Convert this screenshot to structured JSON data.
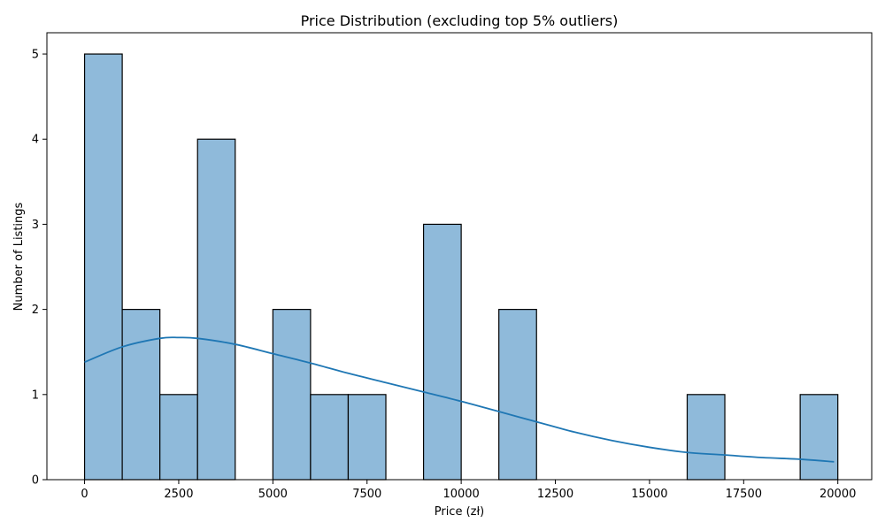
{
  "chart_data": {
    "type": "bar",
    "title": "Price Distribution (excluding top 5% outliers)",
    "xlabel": "Price (zł)",
    "ylabel": "Number of Listings",
    "xlim": [
      -1000,
      20900
    ],
    "ylim": [
      0,
      5.25
    ],
    "x_ticks": [
      0,
      2500,
      5000,
      7500,
      10000,
      12500,
      15000,
      17500,
      20000
    ],
    "y_ticks": [
      0,
      1,
      2,
      3,
      4,
      5
    ],
    "grid": false,
    "bin_edges": [
      0,
      1000,
      2000,
      3000,
      4000,
      5000,
      6000,
      7000,
      8000,
      9000,
      10000,
      11000,
      12000,
      13000,
      14000,
      15000,
      16000,
      17000,
      18000,
      19000,
      20000
    ],
    "values": [
      5,
      2,
      1,
      4,
      0,
      2,
      1,
      1,
      0,
      3,
      0,
      2,
      0,
      0,
      0,
      0,
      1,
      0,
      0,
      1
    ],
    "bar_color": "#8fbada",
    "bar_edge_color": "#000000",
    "kde": {
      "color": "#1f77b4",
      "x": [
        0,
        1000,
        2000,
        2500,
        3000,
        4000,
        5000,
        6000,
        7000,
        8000,
        9000,
        10000,
        11000,
        12000,
        13000,
        14000,
        15000,
        16000,
        17000,
        18000,
        19000,
        19900
      ],
      "y": [
        1.38,
        1.56,
        1.66,
        1.67,
        1.66,
        1.59,
        1.48,
        1.37,
        1.25,
        1.14,
        1.03,
        0.92,
        0.8,
        0.68,
        0.56,
        0.46,
        0.38,
        0.32,
        0.29,
        0.26,
        0.24,
        0.21
      ]
    }
  }
}
